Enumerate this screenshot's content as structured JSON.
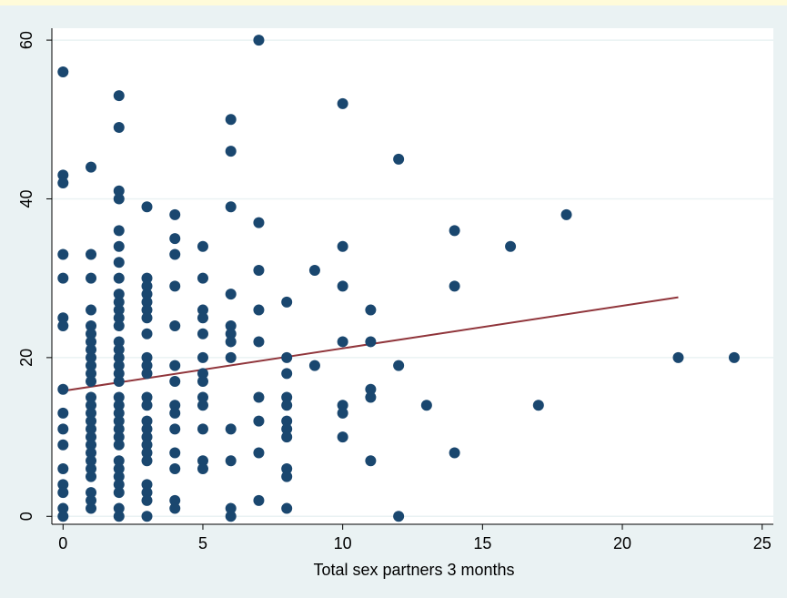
{
  "colors": {
    "page_background": "#eaf2f3",
    "top_band": "#fffbd9",
    "plot_background": "#ffffff",
    "gridline": "#eaf2f3",
    "marker": "#1a476f",
    "fit_line": "#90353b",
    "axis": "#000000"
  },
  "chart_data": {
    "type": "scatter",
    "xlabel": "Total sex partners 3 months",
    "ylabel": "",
    "xlim": [
      -0.4,
      25.4
    ],
    "ylim": [
      -1,
      61.5
    ],
    "xticks": [
      0,
      5,
      10,
      15,
      20,
      25
    ],
    "yticks": [
      0,
      20,
      40,
      60
    ],
    "grid": "horizontal",
    "legend": "none",
    "points": [
      [
        0,
        56
      ],
      [
        0,
        43
      ],
      [
        0,
        42
      ],
      [
        0,
        33
      ],
      [
        0,
        30
      ],
      [
        0,
        25
      ],
      [
        0,
        24
      ],
      [
        0,
        16
      ],
      [
        0,
        13
      ],
      [
        0,
        11
      ],
      [
        0,
        9
      ],
      [
        0,
        6
      ],
      [
        0,
        4
      ],
      [
        0,
        3
      ],
      [
        0,
        1
      ],
      [
        0,
        0
      ],
      [
        1,
        44
      ],
      [
        1,
        33
      ],
      [
        1,
        30
      ],
      [
        1,
        26
      ],
      [
        1,
        24
      ],
      [
        1,
        23
      ],
      [
        1,
        22
      ],
      [
        1,
        21
      ],
      [
        1,
        20
      ],
      [
        1,
        19
      ],
      [
        1,
        18
      ],
      [
        1,
        17
      ],
      [
        1,
        15
      ],
      [
        1,
        14
      ],
      [
        1,
        13
      ],
      [
        1,
        12
      ],
      [
        1,
        11
      ],
      [
        1,
        10
      ],
      [
        1,
        9
      ],
      [
        1,
        8
      ],
      [
        1,
        7
      ],
      [
        1,
        6
      ],
      [
        1,
        5
      ],
      [
        1,
        3
      ],
      [
        1,
        2
      ],
      [
        1,
        1
      ],
      [
        2,
        53
      ],
      [
        2,
        49
      ],
      [
        2,
        41
      ],
      [
        2,
        40
      ],
      [
        2,
        36
      ],
      [
        2,
        34
      ],
      [
        2,
        32
      ],
      [
        2,
        30
      ],
      [
        2,
        28
      ],
      [
        2,
        27
      ],
      [
        2,
        26
      ],
      [
        2,
        25
      ],
      [
        2,
        24
      ],
      [
        2,
        22
      ],
      [
        2,
        21
      ],
      [
        2,
        20
      ],
      [
        2,
        19
      ],
      [
        2,
        18
      ],
      [
        2,
        17
      ],
      [
        2,
        15
      ],
      [
        2,
        14
      ],
      [
        2,
        13
      ],
      [
        2,
        12
      ],
      [
        2,
        11
      ],
      [
        2,
        10
      ],
      [
        2,
        9
      ],
      [
        2,
        7
      ],
      [
        2,
        6
      ],
      [
        2,
        5
      ],
      [
        2,
        4
      ],
      [
        2,
        3
      ],
      [
        2,
        1
      ],
      [
        2,
        0
      ],
      [
        3,
        39
      ],
      [
        3,
        30
      ],
      [
        3,
        29
      ],
      [
        3,
        28
      ],
      [
        3,
        27
      ],
      [
        3,
        26
      ],
      [
        3,
        25
      ],
      [
        3,
        23
      ],
      [
        3,
        20
      ],
      [
        3,
        19
      ],
      [
        3,
        18
      ],
      [
        3,
        15
      ],
      [
        3,
        14
      ],
      [
        3,
        12
      ],
      [
        3,
        11
      ],
      [
        3,
        10
      ],
      [
        3,
        9
      ],
      [
        3,
        8
      ],
      [
        3,
        7
      ],
      [
        3,
        4
      ],
      [
        3,
        3
      ],
      [
        3,
        2
      ],
      [
        3,
        0
      ],
      [
        4,
        38
      ],
      [
        4,
        35
      ],
      [
        4,
        33
      ],
      [
        4,
        29
      ],
      [
        4,
        24
      ],
      [
        4,
        19
      ],
      [
        4,
        17
      ],
      [
        4,
        14
      ],
      [
        4,
        13
      ],
      [
        4,
        11
      ],
      [
        4,
        8
      ],
      [
        4,
        6
      ],
      [
        4,
        2
      ],
      [
        4,
        1
      ],
      [
        5,
        34
      ],
      [
        5,
        30
      ],
      [
        5,
        26
      ],
      [
        5,
        25
      ],
      [
        5,
        23
      ],
      [
        5,
        20
      ],
      [
        5,
        18
      ],
      [
        5,
        17
      ],
      [
        5,
        15
      ],
      [
        5,
        14
      ],
      [
        5,
        11
      ],
      [
        5,
        7
      ],
      [
        5,
        6
      ],
      [
        6,
        50
      ],
      [
        6,
        46
      ],
      [
        6,
        39
      ],
      [
        6,
        28
      ],
      [
        6,
        24
      ],
      [
        6,
        23
      ],
      [
        6,
        22
      ],
      [
        6,
        20
      ],
      [
        6,
        11
      ],
      [
        6,
        7
      ],
      [
        6,
        1
      ],
      [
        6,
        0
      ],
      [
        7,
        60
      ],
      [
        7,
        37
      ],
      [
        7,
        31
      ],
      [
        7,
        26
      ],
      [
        7,
        22
      ],
      [
        7,
        15
      ],
      [
        7,
        12
      ],
      [
        7,
        8
      ],
      [
        7,
        2
      ],
      [
        8,
        27
      ],
      [
        8,
        20
      ],
      [
        8,
        18
      ],
      [
        8,
        15
      ],
      [
        8,
        14
      ],
      [
        8,
        12
      ],
      [
        8,
        11
      ],
      [
        8,
        10
      ],
      [
        8,
        6
      ],
      [
        8,
        5
      ],
      [
        8,
        1
      ],
      [
        9,
        31
      ],
      [
        9,
        19
      ],
      [
        10,
        52
      ],
      [
        10,
        34
      ],
      [
        10,
        29
      ],
      [
        10,
        22
      ],
      [
        10,
        14
      ],
      [
        10,
        13
      ],
      [
        10,
        10
      ],
      [
        11,
        26
      ],
      [
        11,
        22
      ],
      [
        11,
        16
      ],
      [
        11,
        15
      ],
      [
        11,
        7
      ],
      [
        12,
        45
      ],
      [
        12,
        19
      ],
      [
        12,
        0
      ],
      [
        13,
        14
      ],
      [
        14,
        36
      ],
      [
        14,
        29
      ],
      [
        14,
        8
      ],
      [
        16,
        34
      ],
      [
        17,
        14
      ],
      [
        18,
        38
      ],
      [
        22,
        20
      ],
      [
        24,
        20
      ]
    ],
    "fit_line": [
      [
        0,
        15.8
      ],
      [
        22,
        27.6
      ]
    ]
  }
}
